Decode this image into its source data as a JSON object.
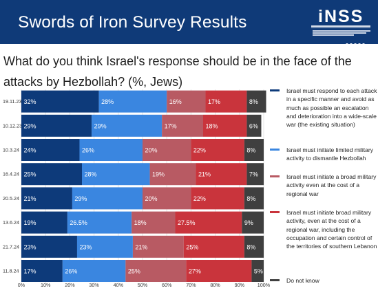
{
  "banner": {
    "title": "Swords of Iron Survey Results"
  },
  "logo": {
    "text": "iNSS"
  },
  "question": "What do you think Israel's response should be in the face of the attacks by Hezbollah? (%, Jews)",
  "colors": {
    "banner": "#0f3a78",
    "series": [
      "#0d3a7a",
      "#3a86e0",
      "#b85a63",
      "#c9343c",
      "#3f3f3f"
    ]
  },
  "chart_data": {
    "type": "bar",
    "orientation": "horizontal",
    "stacked": true,
    "categories": [
      "19.11.23",
      "10.12.23",
      "10.3.24",
      "16.4.24",
      "20.5.24",
      "13.6.24",
      "21.7.24",
      "11.8.24"
    ],
    "series": [
      {
        "name": "Israel must respond to each attack in a specific manner and avoid as much as possible an escalation and deterioration into a wide-scale war (the existing situation)",
        "values": [
          32,
          29,
          24,
          25,
          21,
          19,
          23,
          17
        ],
        "labels": [
          "32%",
          "29%",
          "24%",
          "25%",
          "21%",
          "19%",
          "23%",
          "17%"
        ]
      },
      {
        "name": "Israel must initiate limited military activity to dismantle Hezbollah",
        "values": [
          28,
          29,
          26,
          28,
          29,
          26.5,
          23,
          26
        ],
        "labels": [
          "28%",
          "29%",
          "26%",
          "28%",
          "29%",
          "26.5%",
          "23%",
          "26%"
        ]
      },
      {
        "name": "Israel must initiate a broad military activity even at the cost of a regional war",
        "values": [
          16,
          17,
          20,
          19,
          20,
          18,
          21,
          25
        ],
        "labels": [
          "16%",
          "17%",
          "20%",
          "19%",
          "20%",
          "18%",
          "21%",
          "25%"
        ]
      },
      {
        "name": "Israel must initiate broad military activity, even at the cost of a regional war, including the occupation and certain control of the territories of southern Lebanon",
        "values": [
          17,
          18,
          22,
          21,
          22,
          27.5,
          25,
          27
        ],
        "labels": [
          "17%",
          "18%",
          "22%",
          "21%",
          "22%",
          "27.5%",
          "25%",
          "27%"
        ]
      },
      {
        "name": "Do not know",
        "values": [
          8,
          6,
          8,
          7,
          8,
          9,
          8,
          5
        ],
        "labels": [
          "8%",
          "6%",
          "8%",
          "7%",
          "8%",
          "9%",
          "8%",
          "5%"
        ]
      }
    ],
    "x_ticks": [
      "0%",
      "10%",
      "20%",
      "30%",
      "40%",
      "50%",
      "60%",
      "70%",
      "80%",
      "90%",
      "100%"
    ],
    "xlim": [
      0,
      100
    ],
    "legend_position": "right"
  }
}
